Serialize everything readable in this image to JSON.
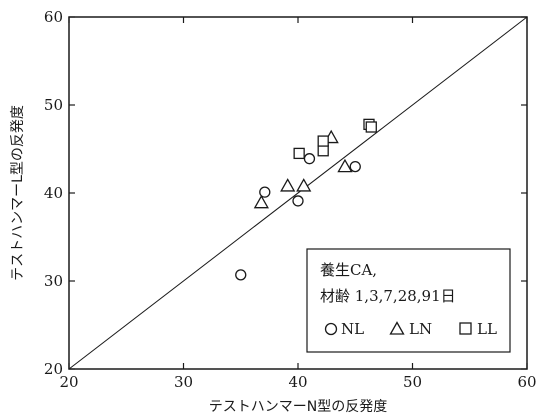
{
  "chart_data": {
    "type": "scatter",
    "title": "",
    "xlabel": "テストハンマーN型の反発度",
    "ylabel": "テストハンマーL型の反発度",
    "xlim": [
      20,
      60
    ],
    "ylim": [
      20,
      60
    ],
    "xticks": [
      "20",
      "30",
      "40",
      "50",
      "60"
    ],
    "yticks": [
      "20",
      "30",
      "40",
      "50",
      "60"
    ],
    "grid": false,
    "reference_line": "y = x",
    "legend": {
      "position": "bottom-right",
      "line1": "養生CA,",
      "line2": "材齢 1,3,7,28,91日"
    },
    "series": [
      {
        "name": "NL",
        "marker": "circle",
        "points": [
          [
            35.0,
            30.7
          ],
          [
            37.1,
            40.1
          ],
          [
            40.0,
            39.1
          ],
          [
            41.0,
            43.9
          ],
          [
            45.0,
            43.0
          ]
        ]
      },
      {
        "name": "LN",
        "marker": "triangle",
        "points": [
          [
            36.8,
            38.9
          ],
          [
            39.1,
            40.8
          ],
          [
            40.5,
            40.8
          ],
          [
            42.9,
            46.3
          ],
          [
            44.1,
            43.0
          ]
        ]
      },
      {
        "name": "LL",
        "marker": "square",
        "points": [
          [
            40.1,
            44.5
          ],
          [
            42.2,
            44.8
          ],
          [
            42.2,
            45.9
          ],
          [
            46.2,
            47.8
          ],
          [
            46.4,
            47.5
          ]
        ]
      }
    ]
  }
}
